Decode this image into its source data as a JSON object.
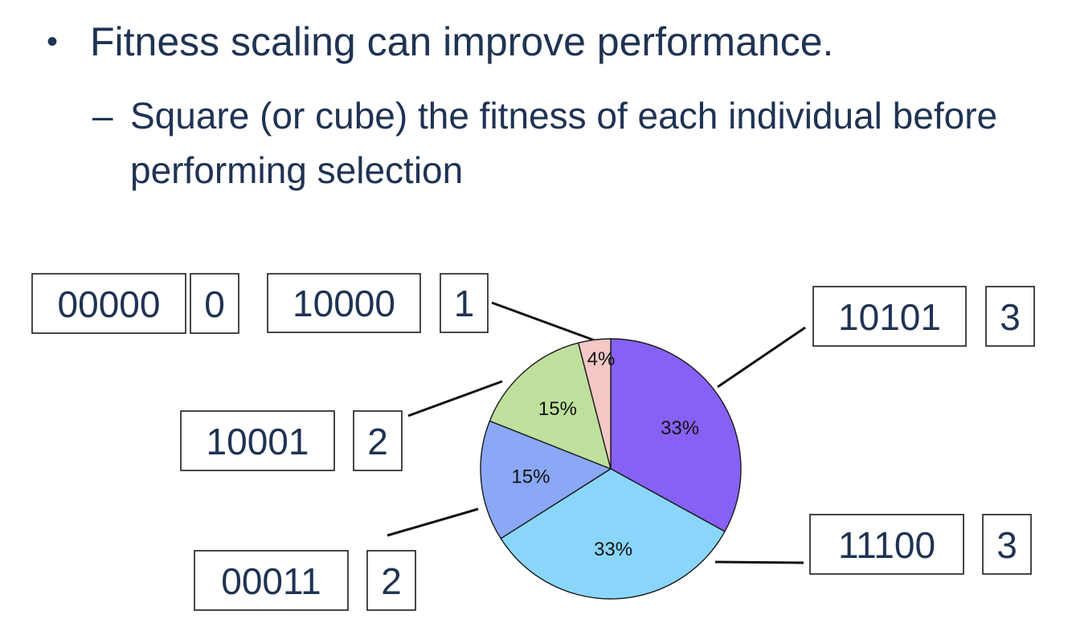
{
  "bullet": {
    "symbol": "•",
    "text": "Fitness scaling can improve performance."
  },
  "sub_bullet": {
    "symbol": "–",
    "text": "Square (or cube) the fitness of each individual before performing selection"
  },
  "individuals": [
    {
      "id": "ind-00000",
      "chromosome": "00000",
      "fitness": "0"
    },
    {
      "id": "ind-10000",
      "chromosome": "10000",
      "fitness": "1"
    },
    {
      "id": "ind-10101",
      "chromosome": "10101",
      "fitness": "3"
    },
    {
      "id": "ind-10001",
      "chromosome": "10001",
      "fitness": "2"
    },
    {
      "id": "ind-00011",
      "chromosome": "00011",
      "fitness": "2"
    },
    {
      "id": "ind-11100",
      "chromosome": "11100",
      "fitness": "3"
    }
  ],
  "chart_data": {
    "type": "pie",
    "start": "12 o'clock, clockwise",
    "slices": [
      {
        "label": "10101",
        "value": 33,
        "text": "33%",
        "color": "#8661f3"
      },
      {
        "label": "11100",
        "value": 33,
        "text": "33%",
        "color": "#8ad6fb"
      },
      {
        "label": "00011",
        "value": 15,
        "text": "15%",
        "color": "#8aa8f5"
      },
      {
        "label": "10001",
        "value": 15,
        "text": "15%",
        "color": "#bfe09d"
      },
      {
        "label": "10000",
        "value": 4,
        "text": "4%",
        "color": "#f3c8c6"
      }
    ]
  }
}
